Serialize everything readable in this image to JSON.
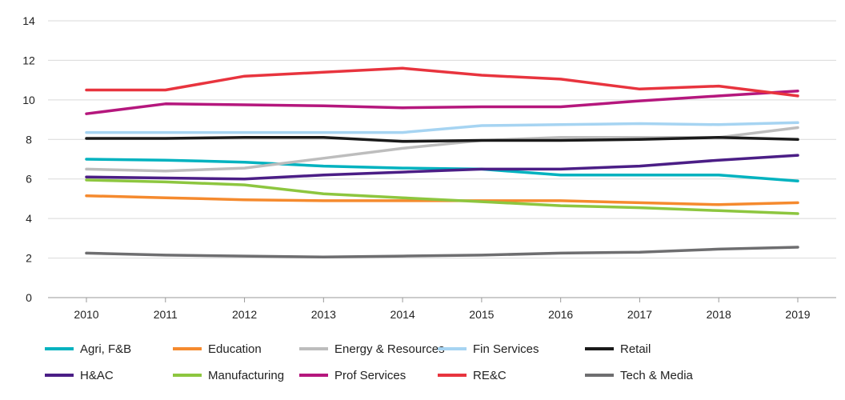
{
  "chart_data": {
    "type": "line",
    "title": "",
    "xlabel": "",
    "ylabel": "",
    "x": [
      "2010",
      "2011",
      "2012",
      "2013",
      "2014",
      "2015",
      "2016",
      "2017",
      "2018",
      "2019"
    ],
    "ylim": [
      0,
      14
    ],
    "yticks": [
      "0",
      "2",
      "4",
      "6",
      "8",
      "10",
      "12",
      "14"
    ],
    "grid": "horizontal",
    "legend_position": "bottom",
    "series": [
      {
        "name": "Agri, F&B",
        "color": "#00b2bf",
        "values": [
          7.0,
          6.95,
          6.85,
          6.65,
          6.55,
          6.5,
          6.2,
          6.2,
          6.2,
          5.9
        ]
      },
      {
        "name": "Education",
        "color": "#f58a2e",
        "values": [
          5.15,
          5.05,
          4.95,
          4.9,
          4.9,
          4.9,
          4.9,
          4.8,
          4.7,
          4.8
        ]
      },
      {
        "name": "Energy & Resources",
        "color": "#bdbdbd",
        "values": [
          6.5,
          6.4,
          6.55,
          7.05,
          7.55,
          7.95,
          8.1,
          8.1,
          8.1,
          8.6
        ]
      },
      {
        "name": "Fin Services",
        "color": "#a6d4f2",
        "values": [
          8.35,
          8.35,
          8.35,
          8.35,
          8.35,
          8.7,
          8.75,
          8.8,
          8.75,
          8.85
        ]
      },
      {
        "name": "Retail",
        "color": "#1a1a1a",
        "values": [
          8.05,
          8.05,
          8.1,
          8.1,
          7.9,
          7.95,
          7.95,
          8.0,
          8.1,
          8.0
        ]
      },
      {
        "name": "H&AC",
        "color": "#4b1e86",
        "values": [
          6.1,
          6.05,
          6.0,
          6.2,
          6.35,
          6.5,
          6.5,
          6.65,
          6.95,
          7.2
        ]
      },
      {
        "name": "Manufacturing",
        "color": "#8dc63f",
        "values": [
          5.95,
          5.85,
          5.7,
          5.25,
          5.05,
          4.85,
          4.65,
          4.55,
          4.4,
          4.25
        ]
      },
      {
        "name": "Prof Services",
        "color": "#b5177d",
        "values": [
          9.3,
          9.8,
          9.75,
          9.7,
          9.6,
          9.65,
          9.65,
          9.95,
          10.2,
          10.45
        ]
      },
      {
        "name": "RE&C",
        "color": "#e8343e",
        "values": [
          10.5,
          10.5,
          11.2,
          11.4,
          11.6,
          11.25,
          11.05,
          10.55,
          10.7,
          10.2
        ]
      },
      {
        "name": "Tech & Media",
        "color": "#6e6e70",
        "values": [
          2.25,
          2.15,
          2.1,
          2.05,
          2.1,
          2.15,
          2.25,
          2.3,
          2.45,
          2.55
        ]
      }
    ]
  }
}
